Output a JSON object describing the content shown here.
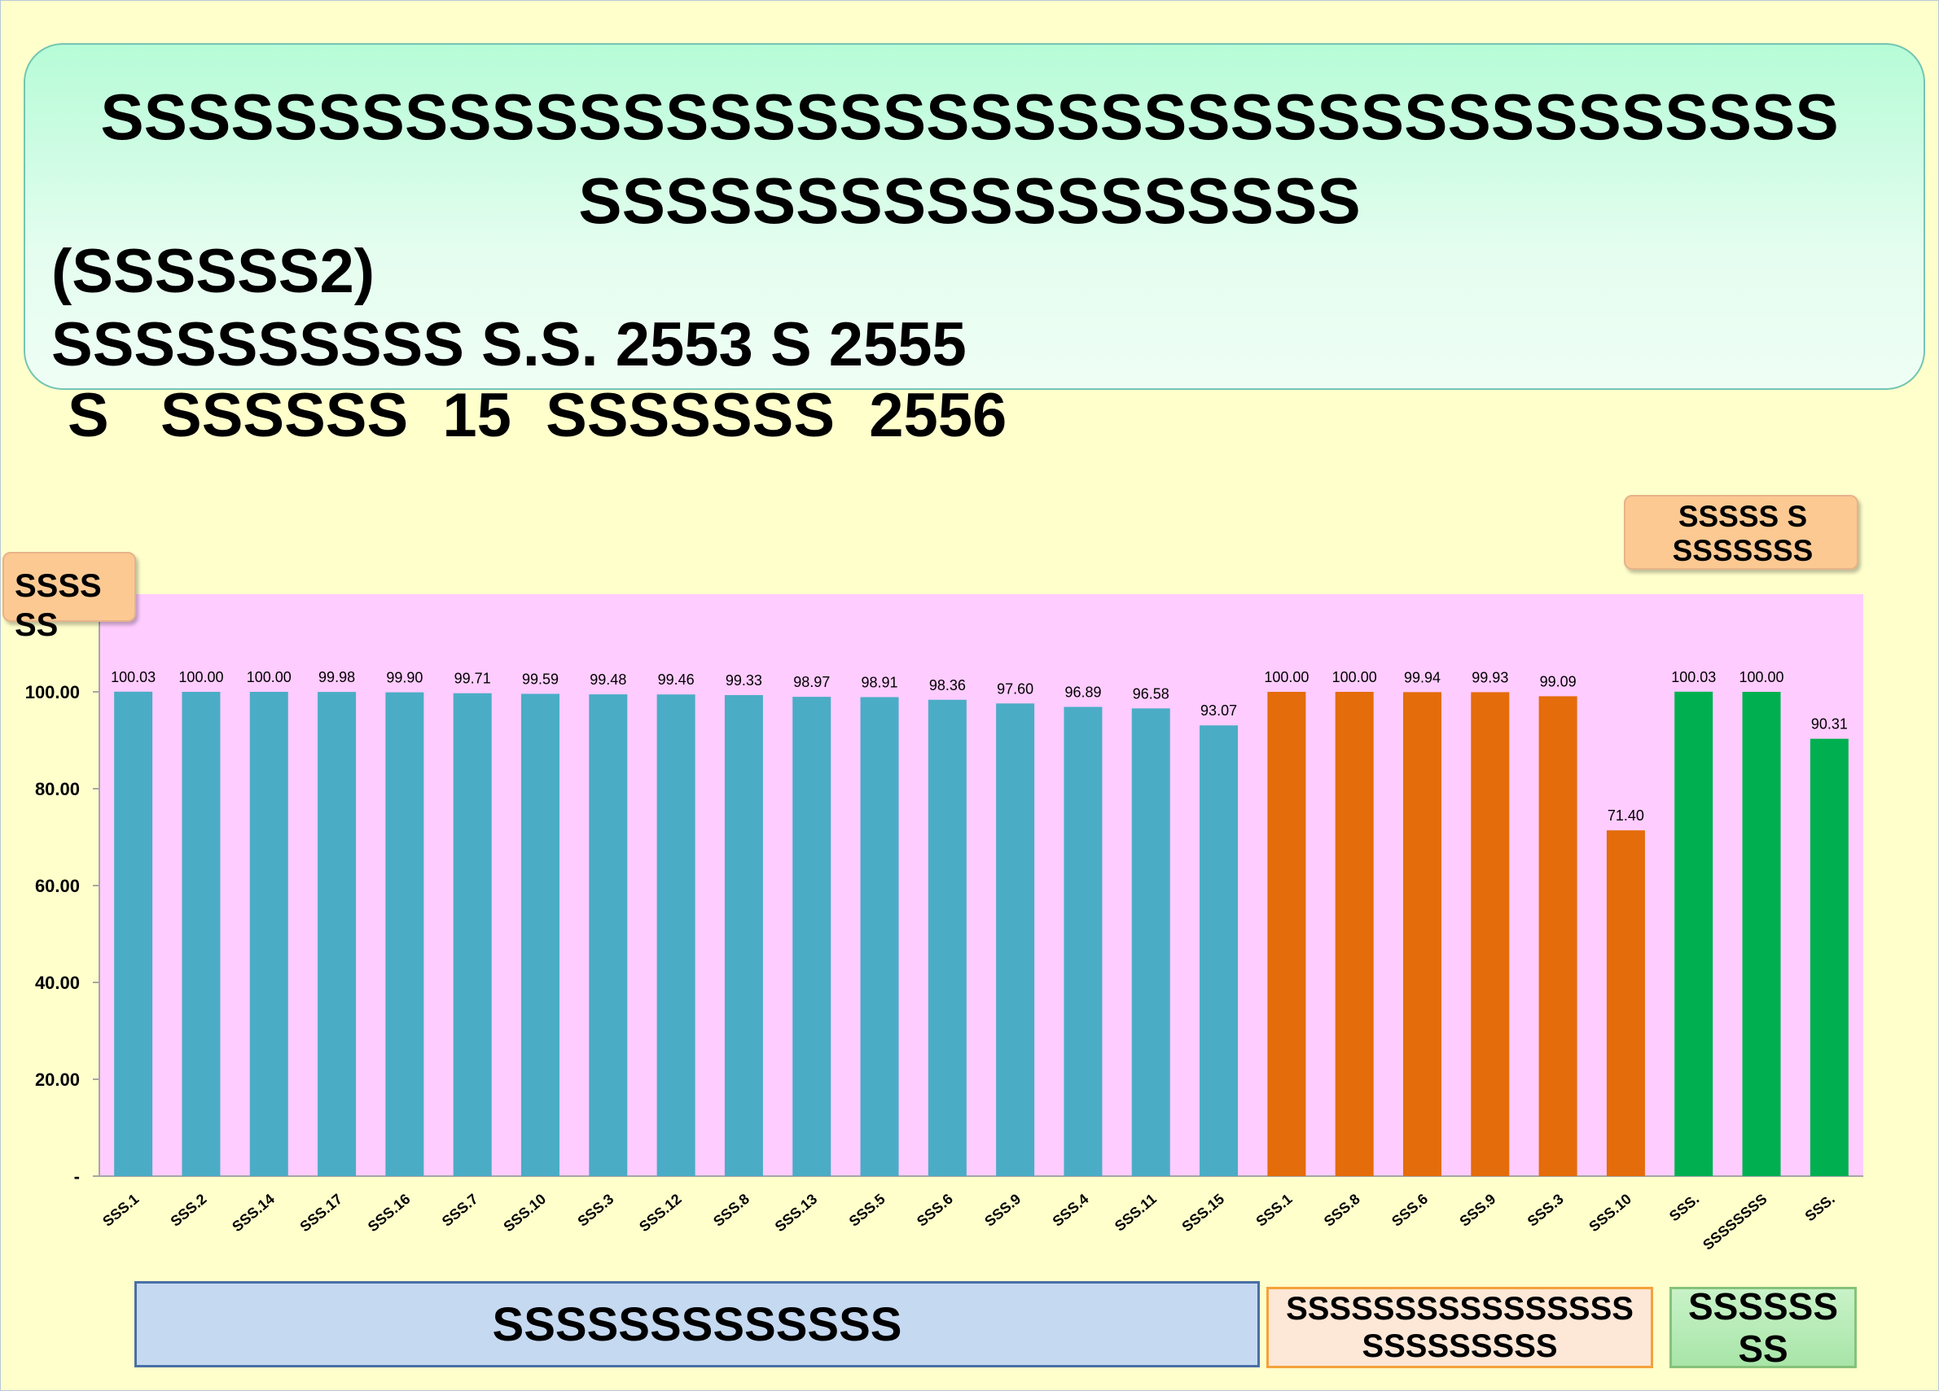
{
  "title": {
    "line1": "SSSSSSSSSSSSSSSSSSSSSSSSSSSSSSSSSSSSSSSS",
    "line2": "SSSSSSSSSSSSSSSSSS",
    "line3": "(SSSSSS2)",
    "line4": "SSSSSSSSSS S.S. 2553 S 2555",
    "line5": "S   SSSSSS  15  SSSSSSS  2556"
  },
  "unit_tag": "SSSS\nSS",
  "legend_tag": "SSSSS S\nSSSSSSS",
  "colors": {
    "plot_bg": "#ffccff",
    "group1": "#4bacc6",
    "group2": "#e46c0a",
    "group3": "#00b050"
  },
  "groups": [
    {
      "label": "SSSSSSSSSSSSS"
    },
    {
      "label": "SSSSSSSSSSSSSSSS\nSSSSSSSSS"
    },
    {
      "label": "SSSSSS\nSS"
    }
  ],
  "chart_data": {
    "type": "bar",
    "ylim": [
      0,
      100
    ],
    "y_ticks": [
      "-",
      "20.00",
      "40.00",
      "60.00",
      "80.00",
      "100.00"
    ],
    "categories": [
      "SSS.1",
      "SSS.2",
      "SSS.14",
      "SSS.17",
      "SSS.16",
      "SSS.7",
      "SSS.10",
      "SSS.3",
      "SSS.12",
      "SSS.8",
      "SSS.13",
      "SSS.5",
      "SSS.6",
      "SSS.9",
      "SSS.4",
      "SSS.11",
      "SSS.15",
      "SSS.1",
      "SSS.8",
      "SSS.6",
      "SSS.9",
      "SSS.3",
      "SSS.10",
      "SSS.",
      "SSSSSSSS",
      "SSS."
    ],
    "values": [
      100.03,
      100.0,
      100.0,
      99.98,
      99.9,
      99.71,
      99.59,
      99.48,
      99.46,
      99.33,
      98.97,
      98.91,
      98.36,
      97.6,
      96.89,
      96.58,
      93.07,
      100.0,
      100.0,
      99.94,
      99.93,
      99.09,
      71.4,
      100.03,
      100.0,
      90.31
    ],
    "value_labels": [
      "100.03",
      "100.00",
      "100.00",
      "99.98",
      "99.90",
      "99.71",
      "99.59",
      "99.48",
      "99.46",
      "99.33",
      "98.97",
      "98.91",
      "98.36",
      "97.60",
      "96.89",
      "96.58",
      "93.07",
      "100.00",
      "100.00",
      "99.94",
      "99.93",
      "99.09",
      "71.40",
      "100.03",
      "100.00",
      "90.31"
    ],
    "group_index": [
      0,
      0,
      0,
      0,
      0,
      0,
      0,
      0,
      0,
      0,
      0,
      0,
      0,
      0,
      0,
      0,
      0,
      1,
      1,
      1,
      1,
      1,
      1,
      2,
      2,
      2
    ]
  }
}
